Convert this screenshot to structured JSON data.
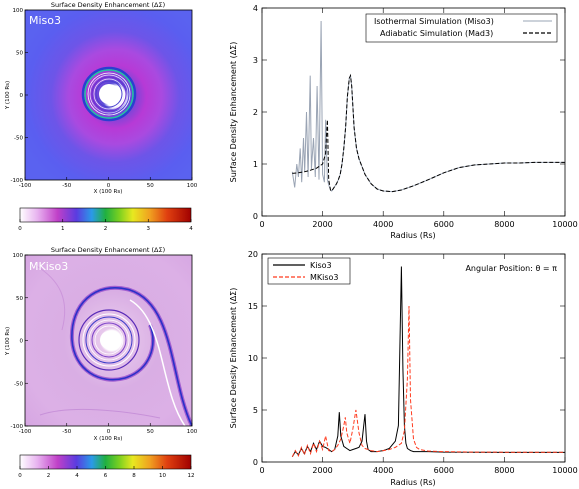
{
  "chart_data": [
    {
      "type": "heatmap",
      "title": "Surface Density Enhancement (ΔΣ)",
      "inset_label": "Miso3",
      "xlabel": "X (100 Rs)",
      "ylabel": "Y (100 Rs)",
      "xlim": [
        -100,
        100
      ],
      "ylim": [
        -100,
        100
      ],
      "xticks": [
        "-100",
        "-50",
        "0",
        "50",
        "100"
      ],
      "yticks": [
        "-100",
        "-50",
        "0",
        "50",
        "100"
      ],
      "colorbar": {
        "min": 0,
        "max": 4,
        "ticks": [
          "0",
          "1",
          "2",
          "3",
          "4"
        ]
      }
    },
    {
      "type": "line",
      "title": "",
      "xlabel": "Radius (Rs)",
      "ylabel": "Surface Density Enhancement (ΔΣ)",
      "xlim": [
        0,
        10000
      ],
      "ylim": [
        0,
        4
      ],
      "xticks": [
        0,
        2000,
        4000,
        6000,
        8000,
        10000
      ],
      "yticks": [
        0,
        1,
        2,
        3,
        4
      ],
      "legend_position": "top-right",
      "series": [
        {
          "name": "Isothermal Simulation (Miso3)",
          "color": "#9aa4b4",
          "style": "solid",
          "x": [
            1000,
            1080,
            1150,
            1200,
            1260,
            1310,
            1370,
            1410,
            1470,
            1520,
            1590,
            1630,
            1700,
            1760,
            1820,
            1880,
            1950,
            2000,
            2060,
            2100,
            2160,
            2200,
            2260,
            2300,
            2380,
            2460,
            2520,
            2580,
            2640,
            2700,
            2760,
            2820,
            2880,
            2920,
            2960,
            3000,
            3040,
            3080,
            3120,
            3200,
            3300,
            3400,
            3600,
            3800,
            4000,
            4300,
            4600,
            5000,
            5500,
            6000,
            6500,
            7000,
            7500,
            8000,
            8500,
            9000,
            9500,
            10000
          ],
          "y": [
            0.85,
            0.55,
            1.0,
            0.75,
            1.3,
            0.65,
            1.5,
            0.85,
            2.0,
            0.75,
            2.7,
            0.9,
            1.5,
            0.75,
            2.5,
            0.7,
            3.75,
            0.8,
            0.65,
            1.85,
            0.7,
            0.6,
            0.5,
            0.48,
            0.55,
            0.62,
            0.7,
            0.8,
            1.0,
            1.3,
            1.7,
            2.3,
            2.65,
            2.7,
            2.5,
            2.1,
            1.7,
            1.5,
            1.3,
            1.1,
            0.95,
            0.8,
            0.62,
            0.52,
            0.48,
            0.47,
            0.5,
            0.58,
            0.7,
            0.83,
            0.93,
            0.98,
            1.0,
            1.02,
            1.02,
            1.03,
            1.03,
            1.03
          ]
        },
        {
          "name": "Adiabatic Simulation (Mad3)",
          "color": "#000000",
          "style": "dashed",
          "x": [
            1000,
            1200,
            1400,
            1600,
            1800,
            2000,
            2100,
            2160,
            2200,
            2260,
            2300,
            2380,
            2460,
            2520,
            2580,
            2640,
            2700,
            2760,
            2820,
            2880,
            2920,
            2960,
            3000,
            3040,
            3080,
            3120,
            3200,
            3300,
            3400,
            3600,
            3800,
            4000,
            4300,
            4600,
            5000,
            5500,
            6000,
            6500,
            7000,
            7500,
            8000,
            8500,
            9000,
            9500,
            10000
          ],
          "y": [
            0.82,
            0.83,
            0.85,
            0.88,
            0.92,
            1.0,
            1.2,
            1.85,
            0.7,
            0.5,
            0.48,
            0.55,
            0.62,
            0.7,
            0.8,
            1.0,
            1.3,
            1.7,
            2.3,
            2.65,
            2.7,
            2.5,
            2.1,
            1.7,
            1.5,
            1.3,
            1.1,
            0.95,
            0.8,
            0.62,
            0.52,
            0.48,
            0.47,
            0.5,
            0.58,
            0.7,
            0.83,
            0.93,
            0.98,
            1.0,
            1.02,
            1.02,
            1.03,
            1.03,
            1.03
          ]
        }
      ]
    },
    {
      "type": "heatmap",
      "title": "Surface Density Enhancement (ΔΣ)",
      "inset_label": "MKiso3",
      "xlabel": "X (100 Rs)",
      "ylabel": "Y (100 Rs)",
      "xlim": [
        -100,
        100
      ],
      "ylim": [
        -100,
        100
      ],
      "xticks": [
        "-100",
        "-50",
        "0",
        "50",
        "100"
      ],
      "yticks": [
        "-100",
        "-50",
        "0",
        "50",
        "100"
      ],
      "colorbar": {
        "min": 0,
        "max": 12,
        "ticks": [
          "0",
          "2",
          "4",
          "6",
          "8",
          "10",
          "12"
        ]
      }
    },
    {
      "type": "line",
      "title": "",
      "annotation": "Angular Position: θ = π",
      "xlabel": "Radius (Rs)",
      "ylabel": "Surface Density Enhancement (ΔΣ)",
      "xlim": [
        0,
        10000
      ],
      "ylim": [
        0,
        20
      ],
      "xticks": [
        0,
        2000,
        4000,
        6000,
        8000,
        10000
      ],
      "yticks": [
        0,
        5,
        10,
        15,
        20
      ],
      "legend_position": "top-left",
      "series": [
        {
          "name": "Kiso3",
          "color": "#000000",
          "style": "solid",
          "x": [
            1000,
            1100,
            1200,
            1300,
            1400,
            1500,
            1600,
            1700,
            1800,
            1900,
            2000,
            2100,
            2200,
            2300,
            2400,
            2500,
            2550,
            2600,
            2700,
            2800,
            2900,
            3000,
            3100,
            3200,
            3300,
            3400,
            3450,
            3500,
            3600,
            3800,
            4000,
            4200,
            4400,
            4500,
            4600,
            4650,
            4700,
            4750,
            4800,
            4900,
            5000,
            5200,
            5500,
            6000,
            7000,
            8000,
            9000,
            10000
          ],
          "y": [
            0.5,
            1.0,
            0.7,
            1.3,
            0.8,
            1.5,
            1.0,
            1.8,
            1.2,
            2.0,
            1.5,
            1.4,
            1.2,
            1.0,
            1.2,
            2.5,
            4.8,
            2.5,
            1.5,
            1.3,
            1.1,
            1.2,
            1.3,
            1.4,
            2.0,
            4.6,
            2.0,
            1.2,
            1.0,
            1.0,
            1.1,
            1.3,
            2.0,
            3.5,
            18.8,
            9.0,
            3.5,
            1.8,
            1.3,
            1.1,
            1.0,
            1.0,
            1.0,
            0.95,
            0.93,
            0.92,
            0.92,
            0.92
          ]
        },
        {
          "name": "MKiso3",
          "color": "#ff3b1f",
          "style": "dashed",
          "x": [
            1000,
            1100,
            1200,
            1300,
            1400,
            1500,
            1600,
            1700,
            1800,
            1900,
            2000,
            2100,
            2200,
            2300,
            2400,
            2500,
            2600,
            2700,
            2750,
            2800,
            2900,
            3000,
            3100,
            3200,
            3300,
            3400,
            3500,
            3600,
            3800,
            4000,
            4200,
            4400,
            4600,
            4700,
            4800,
            4850,
            4900,
            5000,
            5100,
            5200,
            5500,
            6000,
            7000,
            8000,
            9000,
            10000
          ],
          "y": [
            0.5,
            1.1,
            0.6,
            1.4,
            0.7,
            1.6,
            0.8,
            1.8,
            1.0,
            2.0,
            1.2,
            2.5,
            1.1,
            1.0,
            1.2,
            1.6,
            2.2,
            3.5,
            4.3,
            2.8,
            1.8,
            3.2,
            5.0,
            2.8,
            1.6,
            1.3,
            1.2,
            1.1,
            1.0,
            1.1,
            1.2,
            1.4,
            1.8,
            3.0,
            8.0,
            15.0,
            6.0,
            2.2,
            1.4,
            1.2,
            1.05,
            1.0,
            0.95,
            0.94,
            0.93,
            0.93
          ]
        }
      ]
    }
  ]
}
